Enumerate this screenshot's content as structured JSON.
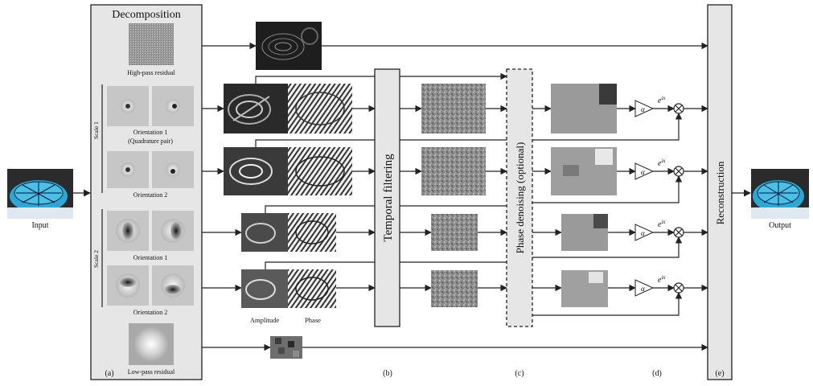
{
  "decomposition": {
    "title": "Decomposition",
    "high_pass_label": "High-pass residual",
    "low_pass_label": "Low-pass residual",
    "scale1_label": "Scale 1",
    "scale2_label": "Scale 2",
    "s1_orient1_label": "Orientation 1",
    "s1_orient1_sub": "(Quadrature pair)",
    "s1_orient2_label": "Orientation 2",
    "s2_orient1_label": "Orientation 1",
    "s2_orient2_label": "Orientation 2"
  },
  "input_label": "Input",
  "output_label": "Output",
  "amplitude_label": "Amplitude",
  "phase_label": "Phase",
  "temporal_filtering_label": "Temporal filtering",
  "phase_denoising_label": "Phase denoising (optional)",
  "reconstruction_label": "Reconstruction",
  "alpha_symbol": "α",
  "exp_base": "e",
  "exp_power": "ix",
  "section_labels": {
    "a": "(a)",
    "b": "(b)",
    "c": "(c)",
    "d": "(d)",
    "e": "(e)"
  },
  "colors": {
    "panel_fill": "#e6e6e6",
    "stroke": "#222222",
    "input_blue": "#2aa8d8"
  }
}
